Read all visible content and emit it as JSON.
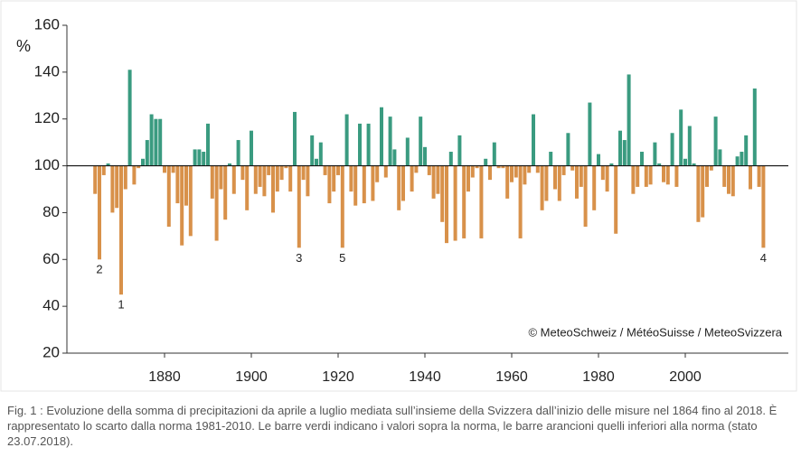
{
  "chart_data": {
    "type": "bar",
    "y_label": "%",
    "credit": "© MeteoSchweiz / MétéoSuisse / MeteoSvizzera",
    "x": [
      1864,
      1865,
      1866,
      1867,
      1868,
      1869,
      1870,
      1871,
      1872,
      1873,
      1874,
      1875,
      1876,
      1877,
      1878,
      1879,
      1880,
      1881,
      1882,
      1883,
      1884,
      1885,
      1886,
      1887,
      1888,
      1889,
      1890,
      1891,
      1892,
      1893,
      1894,
      1895,
      1896,
      1897,
      1898,
      1899,
      1900,
      1901,
      1902,
      1903,
      1904,
      1905,
      1906,
      1907,
      1908,
      1909,
      1910,
      1911,
      1912,
      1913,
      1914,
      1915,
      1916,
      1917,
      1918,
      1919,
      1920,
      1921,
      1922,
      1923,
      1924,
      1925,
      1926,
      1927,
      1928,
      1929,
      1930,
      1931,
      1932,
      1933,
      1934,
      1935,
      1936,
      1937,
      1938,
      1939,
      1940,
      1941,
      1942,
      1943,
      1944,
      1945,
      1946,
      1947,
      1948,
      1949,
      1950,
      1951,
      1952,
      1953,
      1954,
      1955,
      1956,
      1957,
      1958,
      1959,
      1960,
      1961,
      1962,
      1963,
      1964,
      1965,
      1966,
      1967,
      1968,
      1969,
      1970,
      1971,
      1972,
      1973,
      1974,
      1975,
      1976,
      1977,
      1978,
      1979,
      1980,
      1981,
      1982,
      1983,
      1984,
      1985,
      1986,
      1987,
      1988,
      1989,
      1990,
      1991,
      1992,
      1993,
      1994,
      1995,
      1996,
      1997,
      1998,
      1999,
      2000,
      2001,
      2002,
      2003,
      2004,
      2005,
      2006,
      2007,
      2008,
      2009,
      2010,
      2011,
      2012,
      2013,
      2014,
      2015,
      2016,
      2017,
      2018
    ],
    "values": [
      88,
      60,
      96,
      101,
      80,
      82,
      45,
      90,
      141,
      92,
      99,
      103,
      111,
      122,
      120,
      120,
      97,
      74,
      97,
      84,
      66,
      83,
      70,
      107,
      107,
      106,
      118,
      86,
      68,
      90,
      77,
      101,
      88,
      111,
      94,
      81,
      115,
      88,
      91,
      87,
      96,
      80,
      89,
      94,
      99,
      89,
      123,
      65,
      94,
      87,
      113,
      103,
      110,
      96,
      84,
      89,
      96,
      65,
      122,
      89,
      83,
      118,
      84,
      118,
      85,
      93,
      125,
      95,
      121,
      107,
      81,
      85,
      112,
      89,
      97,
      121,
      108,
      96,
      86,
      88,
      76,
      67,
      106,
      68,
      113,
      69,
      89,
      95,
      99,
      69,
      103,
      94,
      110,
      99,
      99,
      86,
      93,
      95,
      69,
      92,
      97,
      122,
      97,
      81,
      85,
      106,
      90,
      85,
      96,
      114,
      98,
      86,
      91,
      74,
      127,
      81,
      105,
      94,
      89,
      101,
      71,
      115,
      111,
      139,
      88,
      91,
      106,
      91,
      92,
      110,
      101,
      93,
      92,
      114,
      91,
      124,
      103,
      117,
      101,
      76,
      78,
      91,
      98,
      121,
      107,
      91,
      88,
      87,
      104,
      106,
      113,
      90,
      133,
      91,
      65
    ],
    "baseline": 100,
    "above_color": "#3a9b80",
    "below_color": "#d8914a",
    "annotations": [
      {
        "label": "1",
        "x": 1870
      },
      {
        "label": "2",
        "x": 1865
      },
      {
        "label": "3",
        "x": 1911
      },
      {
        "label": "4",
        "x": 2018
      },
      {
        "label": "5",
        "x": 1921
      }
    ],
    "xlim": [
      1857.5,
      2023.75
    ],
    "xticks": [
      1880,
      1900,
      1920,
      1940,
      1960,
      1980,
      2000
    ],
    "ylim": [
      20,
      160
    ],
    "yticks": [
      20,
      40,
      60,
      80,
      100,
      120,
      140,
      160
    ]
  },
  "caption": "Fig. 1 : Evoluzione della somma di precipitazioni da aprile a luglio mediata sull’insieme della Svizzera dall’inizio delle misure nel 1864 fino al 2018. È rappresentato lo scarto dalla norma 1981-2010. Le barre verdi indicano i valori sopra la norma, le barre arancioni quelli inferiori alla norma (stato 23.07.2018)."
}
